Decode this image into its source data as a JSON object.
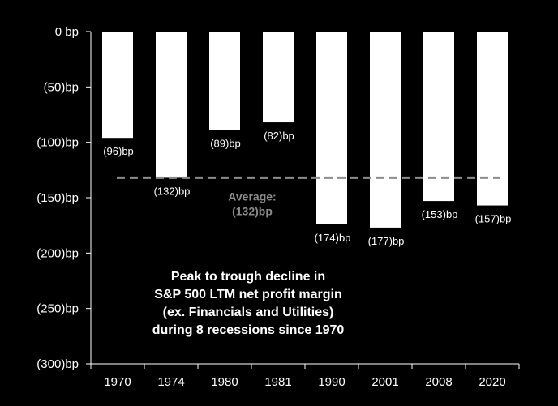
{
  "chart_data": {
    "type": "bar",
    "categories": [
      "1970",
      "1974",
      "1980",
      "1981",
      "1990",
      "2001",
      "2008",
      "2020"
    ],
    "values": [
      -96,
      -132,
      -89,
      -82,
      -174,
      -177,
      -153,
      -157
    ],
    "value_labels": [
      "(96)bp",
      "(132)bp",
      "(89)bp",
      "(82)bp",
      "(174)bp",
      "(177)bp",
      "(153)bp",
      "(157)bp"
    ],
    "ylim": [
      -300,
      0
    ],
    "y_ticks": [
      0,
      -50,
      -100,
      -150,
      -200,
      -250,
      -300
    ],
    "y_tick_labels": [
      "0 bp",
      "(50)bp",
      "(100)bp",
      "(150)bp",
      "(200)bp",
      "(250)bp",
      "(300)bp"
    ],
    "average": {
      "value": -132,
      "label_lines": [
        "Average:",
        "(132)bp"
      ]
    },
    "annotation_lines": [
      "Peak to trough decline in",
      "S&P 500 LTM net profit margin",
      "(ex. Financials and Utilities)",
      "during 8 recessions since 1970"
    ],
    "grid": false,
    "colors": {
      "background": "#000000",
      "bar": "#ffffff",
      "axis": "#ffffff",
      "average_line": "#8c8c8c",
      "text": "#ffffff"
    }
  }
}
